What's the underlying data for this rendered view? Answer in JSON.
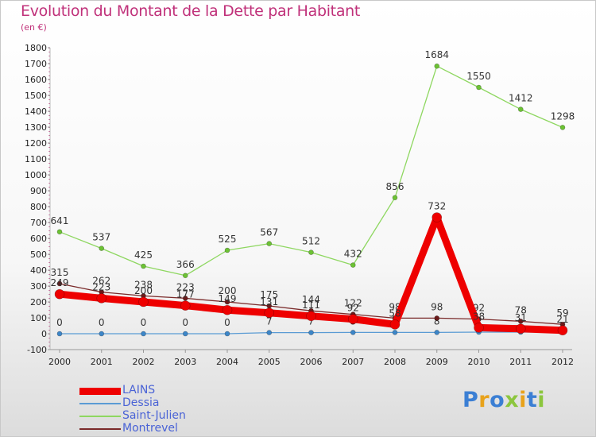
{
  "title": "Evolution du Montant de la Dette par Habitant",
  "subtitle": "(en €)",
  "logo": {
    "text": "Proxiti",
    "colors": [
      "#3b7fd4",
      "#e8a21b",
      "#3b7fd4",
      "#8cc63e",
      "#e8a21b",
      "#3b7fd4",
      "#8cc63e"
    ]
  },
  "chart_data": {
    "type": "line",
    "x": [
      "2000",
      "2001",
      "2002",
      "2003",
      "2004",
      "2005",
      "2006",
      "2007",
      "2008",
      "2009",
      "2010",
      "2011",
      "2012"
    ],
    "ylim": [
      -100,
      1800
    ],
    "yticks": [
      -100,
      0,
      100,
      200,
      300,
      400,
      500,
      600,
      700,
      800,
      900,
      1000,
      1100,
      1200,
      1300,
      1400,
      1500,
      1600,
      1700,
      1800
    ],
    "grid": false,
    "legend_position": "bottom-left",
    "series": [
      {
        "name": "Saint-Julien",
        "color": "#8ed760",
        "marker": "#6cc234",
        "width": 1.3,
        "values": [
          641,
          537,
          425,
          366,
          525,
          567,
          512,
          432,
          856,
          1684,
          1550,
          1412,
          1298
        ],
        "labels": [
          "641",
          "537",
          "425",
          "366",
          "525",
          "567",
          "512",
          "432",
          "856",
          "1684",
          "1550",
          "1412",
          "1298"
        ]
      },
      {
        "name": "Dessia",
        "color": "#5a9bd4",
        "marker": "#3d86c8",
        "width": 1.3,
        "values": [
          0,
          0,
          0,
          0,
          0,
          7,
          7,
          8,
          8,
          8,
          10,
          10,
          10
        ],
        "labels": [
          "0",
          "0",
          "0",
          "0",
          "0",
          "7",
          "7",
          "8",
          "8",
          "8",
          "",
          "",
          ""
        ]
      },
      {
        "name": "Montrevel",
        "color": "#7a2a2a",
        "marker": "#6a1a1a",
        "width": 1.3,
        "values": [
          315,
          262,
          238,
          223,
          200,
          175,
          144,
          122,
          98,
          98,
          92,
          78,
          59
        ],
        "labels": [
          "315",
          "262",
          "238",
          "223",
          "200",
          "175",
          "144",
          "122",
          "98",
          "98",
          "92",
          "78",
          "59"
        ]
      },
      {
        "name": "LAINS",
        "color": "#ee0000",
        "marker": "#ee0000",
        "width": 9,
        "values": [
          249,
          223,
          200,
          177,
          149,
          131,
          111,
          92,
          58,
          732,
          38,
          31,
          21
        ],
        "labels": [
          "249",
          "223",
          "200",
          "177",
          "149",
          "131",
          "111",
          "92",
          "58",
          "732",
          "38",
          "31",
          "21"
        ]
      }
    ],
    "legend": [
      {
        "name": "LAINS",
        "color": "#ee0000",
        "width": 9
      },
      {
        "name": "Dessia",
        "color": "#5a9bd4",
        "width": 2
      },
      {
        "name": "Saint-Julien",
        "color": "#8ed760",
        "width": 2
      },
      {
        "name": "Montrevel",
        "color": "#7a2a2a",
        "width": 2
      }
    ]
  }
}
